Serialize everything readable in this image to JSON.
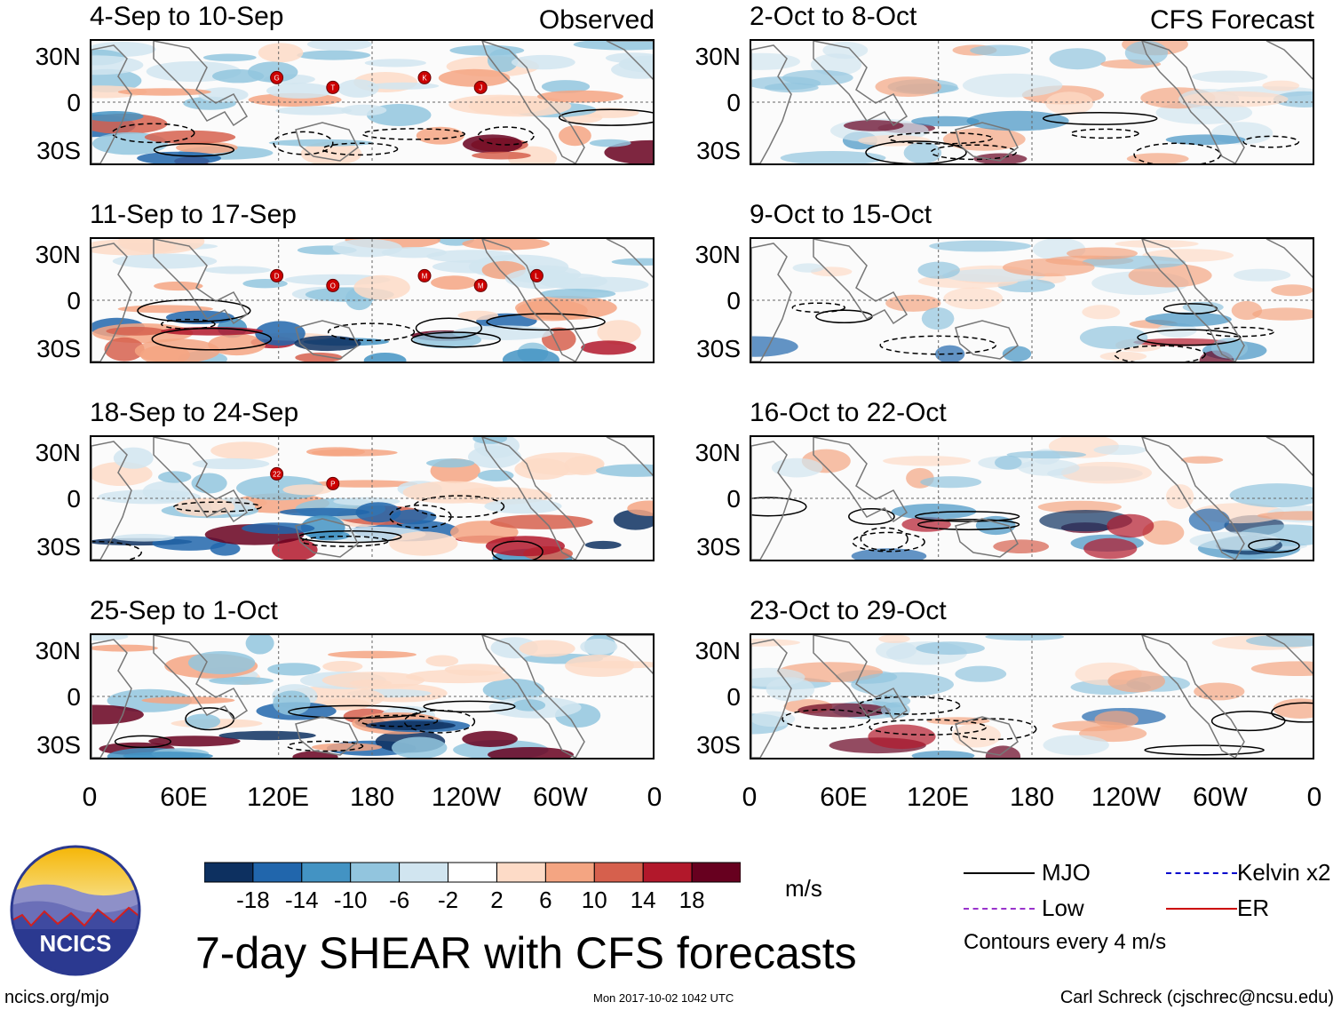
{
  "chart_data": {
    "type": "heatmap",
    "title": "7-day SHEAR with CFS forecasts",
    "units": "m/s",
    "colorbar": {
      "ticks": [
        "-18",
        "-14",
        "-10",
        "-6",
        "-2",
        "2",
        "6",
        "10",
        "14",
        "18"
      ],
      "colors": [
        "#0d3060",
        "#2166ac",
        "#4393c3",
        "#92c5de",
        "#d1e5f0",
        "#ffffff",
        "#fddbc7",
        "#f4a582",
        "#d6604d",
        "#b2182b",
        "#67001f"
      ]
    },
    "lat_ticks": [
      "30N",
      "0",
      "30S"
    ],
    "lon_ticks": [
      "0",
      "60E",
      "120E",
      "180",
      "120W",
      "60W",
      "0"
    ],
    "columns": [
      {
        "tag": "Observed",
        "panels": [
          {
            "title": "4-Sep to 10-Sep",
            "storms": [
              "G",
              "T",
              "K",
              "J"
            ]
          },
          {
            "title": "11-Sep to 17-Sep",
            "storms": [
              "D",
              "O",
              "M",
              "M",
              "L"
            ]
          },
          {
            "title": "18-Sep to 24-Sep",
            "storms": [
              "22",
              "P"
            ]
          },
          {
            "title": "25-Sep to 1-Oct",
            "storms": []
          }
        ]
      },
      {
        "tag": "CFS Forecast",
        "panels": [
          {
            "title": "2-Oct to 8-Oct",
            "storms": []
          },
          {
            "title": "9-Oct to 15-Oct",
            "storms": []
          },
          {
            "title": "16-Oct to 22-Oct",
            "storms": []
          },
          {
            "title": "23-Oct to 29-Oct",
            "storms": []
          }
        ]
      }
    ],
    "legend": [
      {
        "label": "MJO",
        "color": "#000000"
      },
      {
        "label": "Kelvin x2",
        "color": "#0000cc"
      },
      {
        "label": "Low",
        "color": "#9933cc"
      },
      {
        "label": "ER",
        "color": "#cc0000"
      }
    ],
    "contour_note": "Contours every 4 m/s"
  },
  "logo_text": "NCICS",
  "footer": {
    "left": "ncics.org/mjo",
    "middle": "Mon 2017-10-02 1042 UTC",
    "right": "Carl Schreck (cjschrec@ncsu.edu)"
  }
}
